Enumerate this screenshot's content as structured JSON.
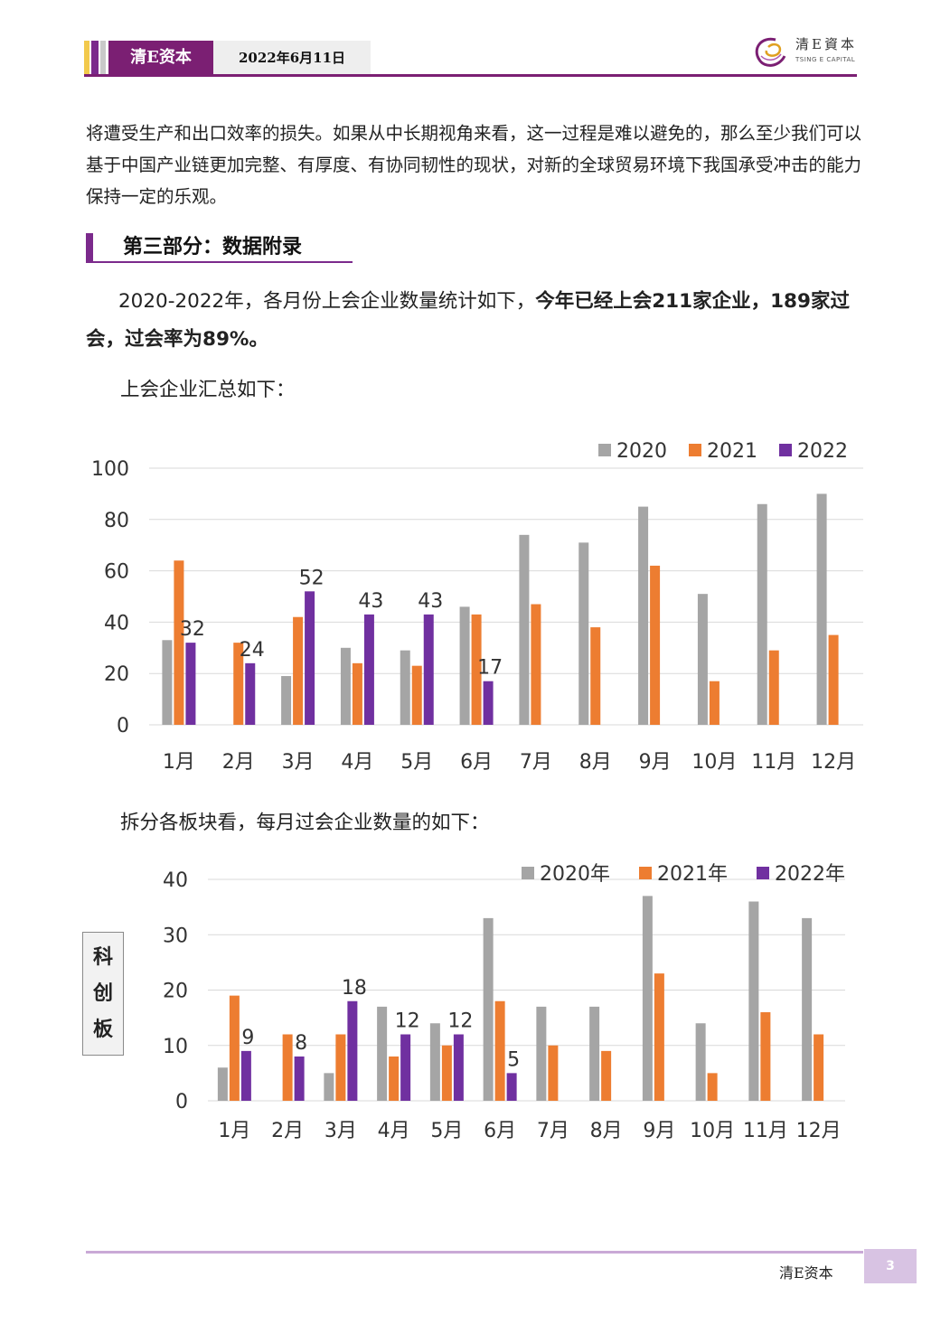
{
  "header": {
    "brand": "清E资本",
    "date": "2022年6月11日",
    "logo_cn": "清E資本",
    "logo_en": "TSING E CAPITAL"
  },
  "intro_paragraph": "将遭受生产和出口效率的损失。如果从中长期视角来看，这一过程是难以避免的，那么至少我们可以基于中国产业链更加完整、有厚度、有协同韧性的现状，对新的全球贸易环境下我国承受冲击的能力保持一定的乐观。",
  "section": {
    "title": "第三部分：数据附录"
  },
  "summary": {
    "normal": "2020-2022年，各月份上会企业数量统计如下，",
    "bold": "今年已经上会211家企业，189家过会，过会率为89%。"
  },
  "chart1_caption": "上会企业汇总如下：",
  "chart2_caption": "拆分各板块看，每月过会企业数量的如下：",
  "chart2_side_label": [
    "科",
    "创",
    "板"
  ],
  "colors": {
    "gray": "#a5a5a5",
    "orange": "#ed7d31",
    "purple": "#7030a0",
    "brand": "#7b1f73"
  },
  "chart_data": [
    {
      "type": "bar",
      "categories": [
        "1月",
        "2月",
        "3月",
        "4月",
        "5月",
        "6月",
        "7月",
        "8月",
        "9月",
        "10月",
        "11月",
        "12月"
      ],
      "ylim": [
        0,
        100
      ],
      "yticks": [
        0,
        20,
        40,
        60,
        80,
        100
      ],
      "legend_position": "top-right",
      "grid": true,
      "series": [
        {
          "name": "2020",
          "color": "#a5a5a5",
          "values": [
            33,
            0,
            19,
            30,
            29,
            46,
            74,
            71,
            85,
            51,
            86,
            90
          ]
        },
        {
          "name": "2021",
          "color": "#ed7d31",
          "values": [
            64,
            32,
            42,
            24,
            23,
            43,
            47,
            38,
            62,
            17,
            29,
            35
          ]
        },
        {
          "name": "2022",
          "color": "#7030a0",
          "values": [
            32,
            24,
            52,
            43,
            43,
            17,
            null,
            null,
            null,
            null,
            null,
            null
          ],
          "labels": true
        }
      ]
    },
    {
      "type": "bar",
      "categories": [
        "1月",
        "2月",
        "3月",
        "4月",
        "5月",
        "6月",
        "7月",
        "8月",
        "9月",
        "10月",
        "11月",
        "12月"
      ],
      "ylim": [
        0,
        40
      ],
      "yticks": [
        0,
        10,
        20,
        30,
        40
      ],
      "legend_position": "top-right",
      "grid": true,
      "series": [
        {
          "name": "2020年",
          "color": "#a5a5a5",
          "values": [
            6,
            0,
            5,
            17,
            14,
            33,
            17,
            17,
            37,
            14,
            36,
            33
          ]
        },
        {
          "name": "2021年",
          "color": "#ed7d31",
          "values": [
            19,
            12,
            12,
            8,
            10,
            18,
            10,
            9,
            23,
            5,
            16,
            12
          ]
        },
        {
          "name": "2022年",
          "color": "#7030a0",
          "values": [
            9,
            8,
            18,
            12,
            12,
            5,
            null,
            null,
            null,
            null,
            null,
            null
          ],
          "labels": true
        }
      ]
    }
  ],
  "footer": {
    "brand": "清E资本",
    "page": "3"
  }
}
